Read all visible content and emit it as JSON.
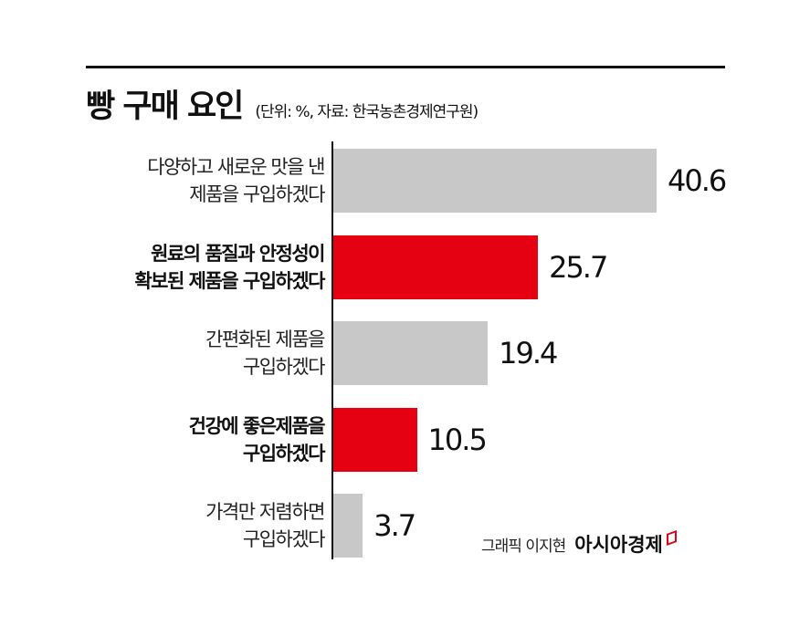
{
  "header": {
    "title": "빵 구매 요인",
    "subtitle": "(단위: %, 자료: 한국농촌경제연구원)"
  },
  "colors": {
    "highlight": "#e50012",
    "neutral": "#c8c8c8",
    "text": "#111111"
  },
  "chart_data": {
    "type": "bar",
    "orientation": "horizontal",
    "title": "빵 구매 요인",
    "subtitle": "(단위: %, 자료: 한국농촌경제연구원)",
    "xlabel": "",
    "ylabel": "",
    "unit": "%",
    "source": "한국농촌경제연구원",
    "grid": false,
    "legend": null,
    "categories": [
      "다양하고 새로운 맛을 낸 제품을 구입하겠다",
      "원료의 품질과 안정성이 확보된 제품을 구입하겠다",
      "간편화된 제품을 구입하겠다",
      "건강에 좋은제품을 구입하겠다",
      "가격만 저렴하면 구입하겠다"
    ],
    "values": [
      40.6,
      25.7,
      19.4,
      10.5,
      3.7
    ],
    "highlighted": [
      false,
      true,
      false,
      true,
      false
    ],
    "xlim": [
      0,
      40.6
    ]
  },
  "rows": [
    {
      "line1": "다양하고 새로운 맛을 낸",
      "line2": "제품을 구입하겠다",
      "value": "40.6",
      "highlight": false
    },
    {
      "line1": "원료의 품질과 안정성이",
      "line2": "확보된 제품을 구입하겠다",
      "value": "25.7",
      "highlight": true
    },
    {
      "line1": "간편화된 제품을",
      "line2": "구입하겠다",
      "value": "19.4",
      "highlight": false
    },
    {
      "line1": "건강에 좋은제품을",
      "line2": "구입하겠다",
      "value": "10.5",
      "highlight": true
    },
    {
      "line1": "가격만 저렴하면",
      "line2": "구입하겠다",
      "value": "3.7",
      "highlight": false
    }
  ],
  "footer": {
    "credit": "그래픽 이지현",
    "brand": "아시아경제"
  }
}
